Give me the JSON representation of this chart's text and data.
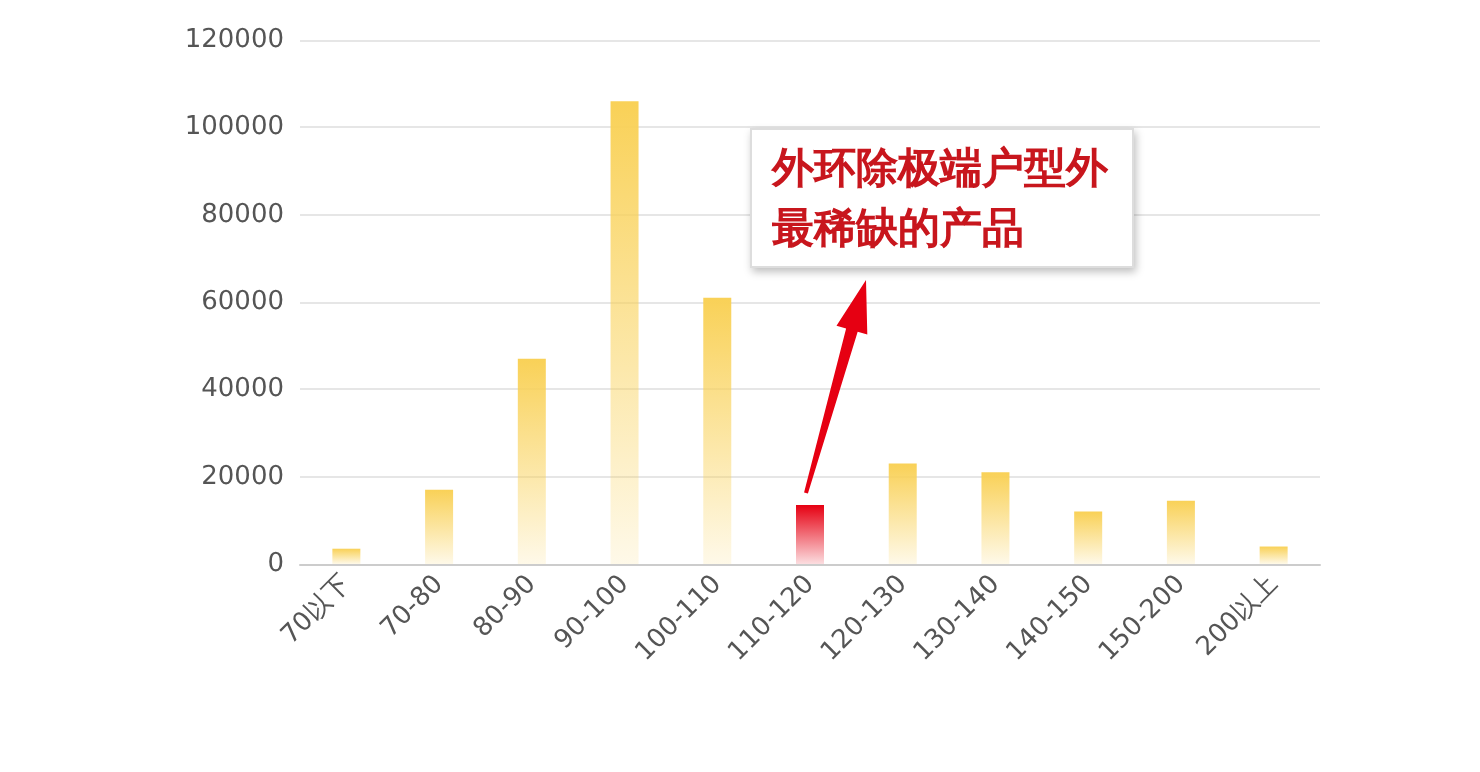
{
  "chart_data": {
    "type": "bar",
    "categories": [
      "70以下",
      "70-80",
      "80-90",
      "90-100",
      "100-110",
      "110-120",
      "120-130",
      "130-140",
      "140-150",
      "150-200",
      "200以上"
    ],
    "values": [
      3500,
      17000,
      47000,
      106000,
      61000,
      13500,
      23000,
      21000,
      12000,
      14500,
      4000
    ],
    "colors": [
      "#f9d157",
      "#f9d157",
      "#f9d157",
      "#f9d157",
      "#f9d157",
      "#e60012",
      "#f9d157",
      "#f9d157",
      "#f9d157",
      "#f9d157",
      "#f9d157"
    ],
    "ylim": [
      0,
      120000
    ],
    "yticks": [
      0,
      20000,
      40000,
      60000,
      80000,
      100000,
      120000
    ],
    "grid": "y",
    "annotations": [
      "外环除极端户型外最稀缺的产品"
    ]
  }
}
